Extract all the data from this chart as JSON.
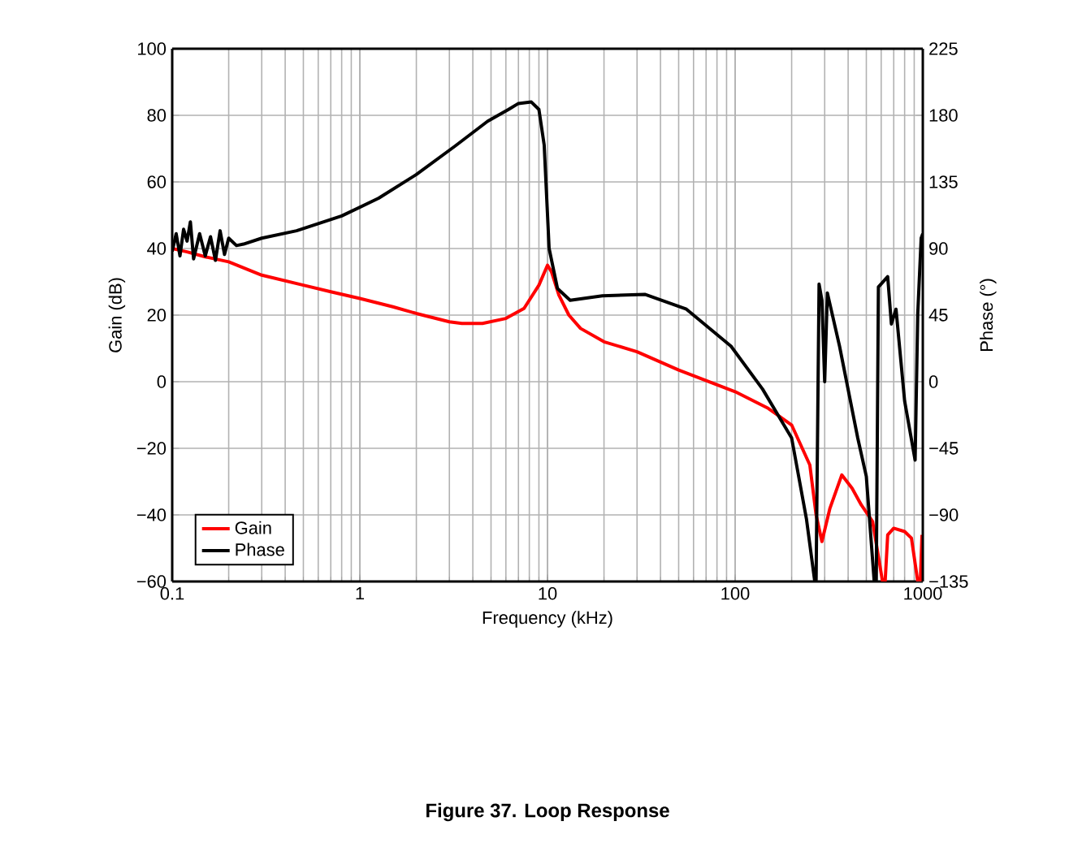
{
  "chart_data": {
    "type": "line",
    "title": "Figure 37. Loop Response",
    "xlabel": "Frequency (kHz)",
    "ylabel": "Gain (dB)",
    "y2label": "Phase (°)",
    "series": [
      {
        "name": "Gain",
        "color": "#ff0000",
        "axis": "y",
        "x": [
          0.1,
          0.12,
          0.15,
          0.2,
          0.3,
          0.5,
          0.7,
          1,
          1.5,
          2,
          3,
          3.5,
          4.5,
          6,
          7.5,
          9,
          10,
          10.5,
          11.5,
          13,
          15,
          20,
          30,
          50,
          100,
          150,
          200,
          250,
          270,
          290,
          320,
          370,
          420,
          470,
          540,
          590,
          610,
          630,
          650,
          700,
          800,
          870,
          940,
          970,
          990
        ],
        "values": [
          40,
          39,
          37.5,
          36,
          32,
          29,
          27,
          25,
          22.5,
          20.5,
          18,
          17.5,
          17.5,
          19,
          22,
          29,
          35,
          33,
          26,
          20,
          16,
          12,
          9,
          3.5,
          -3,
          -8,
          -13,
          -25,
          -40,
          -48,
          -38,
          -28,
          -32,
          -37,
          -42,
          -55,
          -60,
          -60,
          -46,
          -44,
          -45,
          -47,
          -60,
          -60,
          -46
        ]
      },
      {
        "name": "Phase",
        "color": "#000000",
        "axis": "y2",
        "x": [
          0.1,
          0.105,
          0.11,
          0.115,
          0.12,
          0.125,
          0.13,
          0.14,
          0.15,
          0.16,
          0.17,
          0.18,
          0.19,
          0.2,
          0.22,
          0.24,
          0.3,
          0.46,
          0.8,
          1.26,
          2,
          3.2,
          4.8,
          6.2,
          7,
          8.2,
          9,
          9.6,
          10.2,
          11.3,
          13.2,
          19.6,
          33,
          55,
          95,
          140,
          200,
          240,
          265,
          270,
          280,
          290,
          300,
          310,
          360,
          450,
          500,
          550,
          565,
          580,
          650,
          680,
          720,
          800,
          910,
          940,
          980,
          1000
        ],
        "values": [
          88,
          100,
          85,
          103,
          95,
          108,
          83,
          100,
          85,
          98,
          82,
          102,
          86,
          97,
          92,
          93,
          97,
          102,
          112,
          124,
          140,
          159,
          176,
          184,
          188,
          189,
          184,
          160,
          90,
          63,
          55,
          58,
          59,
          49,
          24,
          -5,
          -38,
          -93,
          -134,
          -134,
          66,
          55,
          0,
          60,
          24,
          -38,
          -64,
          -134,
          -134,
          64,
          71,
          39,
          49,
          -13,
          -53,
          46,
          97,
          100
        ]
      }
    ],
    "xlim": [
      0.1,
      1000
    ],
    "ylim": [
      -60,
      100
    ],
    "y2lim": [
      -135,
      225
    ],
    "xticks": [
      0.1,
      1,
      10,
      100,
      1000
    ],
    "yticks": [
      {
        "value": -60,
        "label": "−60"
      },
      {
        "value": -40,
        "label": "−40"
      },
      {
        "value": -20,
        "label": "−20"
      },
      0,
      20,
      40,
      60,
      80,
      100
    ],
    "y2ticks": [
      {
        "value": -135,
        "label": "−135"
      },
      {
        "value": -90,
        "label": "−90"
      },
      {
        "value": -45,
        "label": "−45"
      },
      0,
      45,
      90,
      135,
      180,
      225
    ],
    "log": "x",
    "grid": true,
    "legend": "bottom left"
  }
}
